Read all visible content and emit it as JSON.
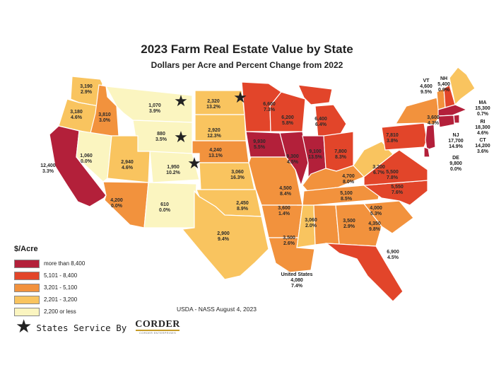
{
  "title": "2023 Farm Real Estate Value by State",
  "subtitle": "Dollars per Acre and Percent Change from 2022",
  "legend": {
    "title": "$/Acre",
    "items": [
      {
        "label": "more than 8,400",
        "color": "#b3203a"
      },
      {
        "label": "5,101 - 8,400",
        "color": "#e2452a"
      },
      {
        "label": "3,201 - 5,100",
        "color": "#f2923d"
      },
      {
        "label": "2,201 - 3,200",
        "color": "#f9c45f"
      },
      {
        "label": "2,200 or less",
        "color": "#fbf5c0"
      }
    ]
  },
  "source": "USDA - NASS August 4, 2023",
  "us_total": {
    "name": "United States",
    "value": "4,080",
    "change": "7.4%"
  },
  "service": {
    "text": "States Service By",
    "logo": "CORDER",
    "logo_sub": "CORDER ENTERPRISES"
  },
  "states": {
    "WA": {
      "value": "3,190",
      "change": "2.9%"
    },
    "OR": {
      "value": "3,180",
      "change": "4.6%"
    },
    "CA": {
      "value": "12,400",
      "change": "3.3%"
    },
    "ID": {
      "value": "3,810",
      "change": "3.0%"
    },
    "NV": {
      "value": "1,060",
      "change": "0.0%"
    },
    "MT": {
      "value": "1,070",
      "change": "3.9%"
    },
    "WY": {
      "value": "880",
      "change": "3.5%"
    },
    "UT": {
      "value": "2,940",
      "change": "4.6%"
    },
    "AZ": {
      "value": "4,200",
      "change": "0.0%"
    },
    "CO": {
      "value": "1,950",
      "change": "10.2%"
    },
    "NM": {
      "value": "610",
      "change": "0.0%"
    },
    "ND": {
      "value": "2,320",
      "change": "13.2%"
    },
    "SD": {
      "value": "2,920",
      "change": "12.3%"
    },
    "NE": {
      "value": "4,240",
      "change": "13.1%"
    },
    "KS": {
      "value": "3,060",
      "change": "16.3%"
    },
    "OK": {
      "value": "2,450",
      "change": "8.9%"
    },
    "TX": {
      "value": "2,900",
      "change": "9.4%"
    },
    "MN": {
      "value": "6,600",
      "change": "7.3%"
    },
    "IA": {
      "value": "9,930",
      "change": "5.5%"
    },
    "MO": {
      "value": "4,500",
      "change": "8.4%"
    },
    "AR": {
      "value": "3,600",
      "change": "1.4%"
    },
    "LA": {
      "value": "3,500",
      "change": "2.6%"
    },
    "WI": {
      "value": "6,200",
      "change": "5.8%"
    },
    "IL": {
      "value": "9,300",
      "change": "4.5%"
    },
    "MS": {
      "value": "3,060",
      "change": "2.0%"
    },
    "MI": {
      "value": "6,400",
      "change": "6.4%"
    },
    "IN": {
      "value": "9,100",
      "change": "13.5%"
    },
    "OH": {
      "value": "7,800",
      "change": "8.3%"
    },
    "KY": {
      "value": "4,700",
      "change": "8.0%"
    },
    "TN": {
      "value": "5,100",
      "change": "8.5%"
    },
    "AL": {
      "value": "3,500",
      "change": "2.9%"
    },
    "GA": {
      "value": "4,350",
      "change": "9.8%"
    },
    "FL": {
      "value": "6,900",
      "change": "4.5%"
    },
    "SC": {
      "value": "4,000",
      "change": "5.3%"
    },
    "NC": {
      "value": "5,550",
      "change": "7.6%"
    },
    "VA": {
      "value": "5,500",
      "change": "7.8%"
    },
    "WV": {
      "value": "3,200",
      "change": "6.7%"
    },
    "PA": {
      "value": "7,810",
      "change": "3.8%"
    },
    "NY": {
      "value": "3,600",
      "change": "4.3%"
    },
    "VT": {
      "value": "4,600",
      "change": "9.5%"
    },
    "NH": {
      "value": "5,400",
      "change": "0.9%"
    },
    "ME": {
      "value": "2,880",
      "change": "0.7%"
    },
    "MA": {
      "value": "15,300",
      "change": "0.7%"
    },
    "RI": {
      "value": "18,300",
      "change": "4.6%"
    },
    "CT": {
      "value": "14,200",
      "change": "3.6%"
    },
    "NJ": {
      "value": "17,700",
      "change": "14.9%"
    },
    "DE": {
      "value": "9,800",
      "change": "0.0%"
    }
  },
  "ne_abbr": {
    "VT": "VT",
    "NH": "NH",
    "MA": "MA",
    "RI": "RI",
    "CT": "CT",
    "NJ": "NJ",
    "DE": "DE"
  },
  "service_states": [
    "MT",
    "ND",
    "WY",
    "CO"
  ]
}
